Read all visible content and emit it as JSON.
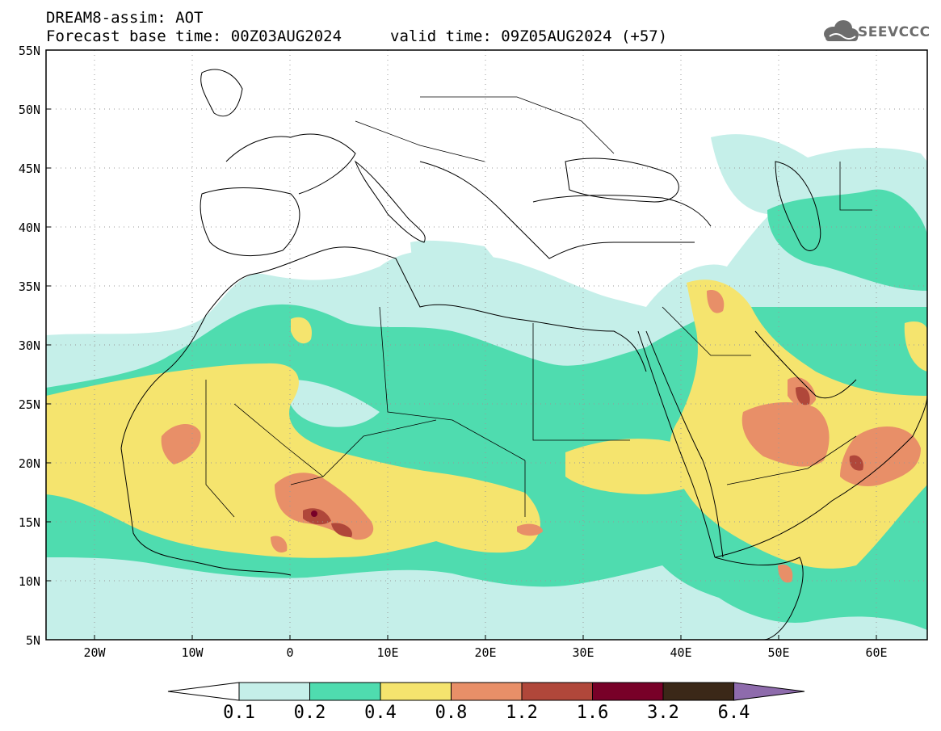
{
  "header": {
    "title_line1": "DREAM8-assim: AOT",
    "title_line2": "Forecast base time: 00Z03AUG2024",
    "valid_time": "valid time: 09Z05AUG2024 (+57)",
    "logo_text": "SEEVCCC"
  },
  "map": {
    "lat_labels": [
      "55N",
      "50N",
      "45N",
      "40N",
      "35N",
      "30N",
      "25N",
      "20N",
      "15N",
      "10N",
      "5N"
    ],
    "lon_labels": [
      "20W",
      "10W",
      "0",
      "10E",
      "20E",
      "30E",
      "40E",
      "50E",
      "60E"
    ],
    "lat_range": [
      5,
      55
    ],
    "lon_range": [
      -25,
      65
    ],
    "field": "Aerosol Optical Thickness",
    "grid": "dotted"
  },
  "colorbar": {
    "levels": [
      "0.1",
      "0.2",
      "0.4",
      "0.8",
      "1.2",
      "1.6",
      "3.2",
      "6.4"
    ],
    "colors": [
      "#c5efe9",
      "#4fdcaf",
      "#f5e46e",
      "#e88f68",
      "#b0473a",
      "#780028",
      "#3b2818",
      "#8e6bac"
    ]
  }
}
